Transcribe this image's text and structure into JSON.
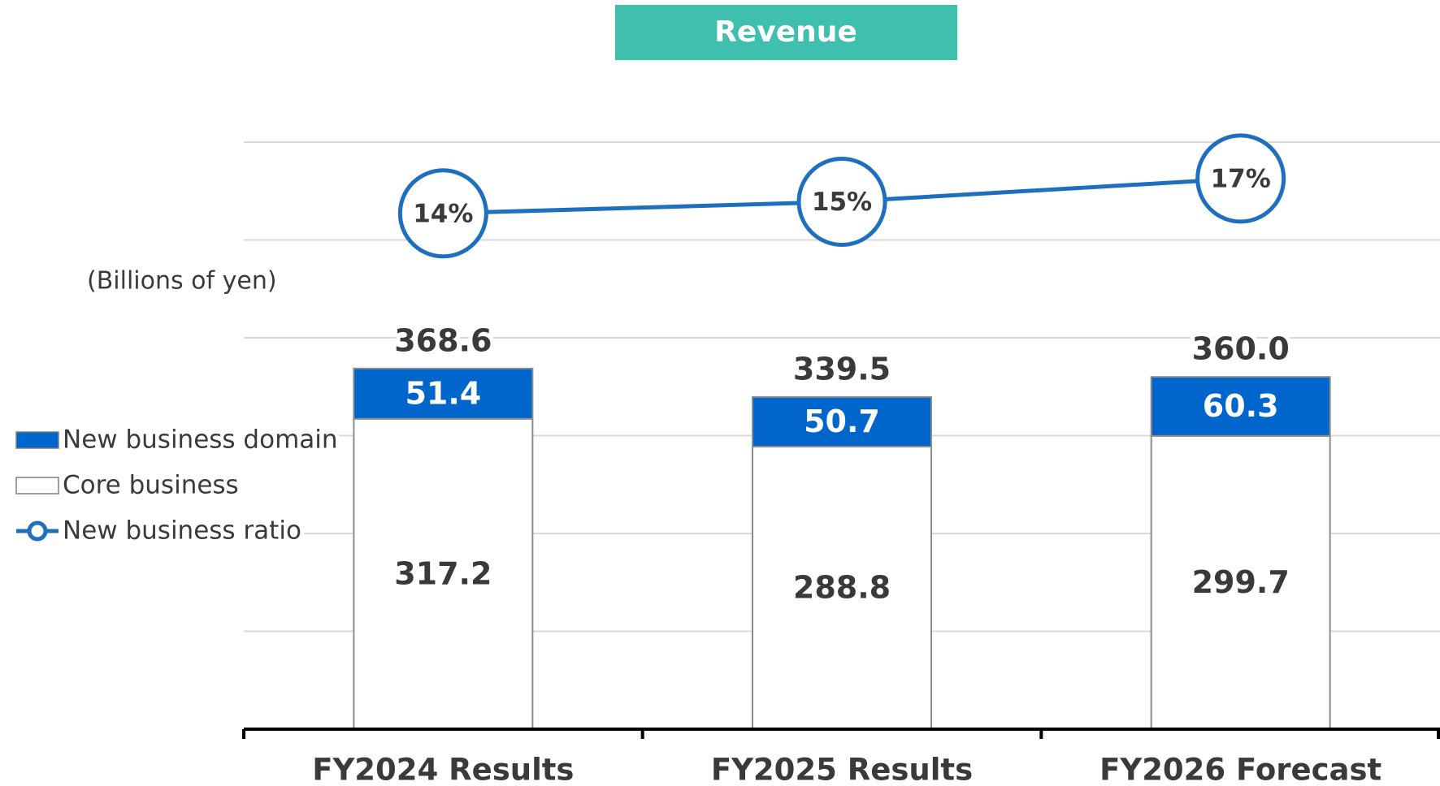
{
  "chart_data": {
    "type": "bar",
    "title": "Revenue",
    "y_label": "(Billions of yen)",
    "categories": [
      "FY2024 Results",
      "FY2025 Results",
      "FY2026 Forecast"
    ],
    "series": [
      {
        "name": "New business domain",
        "color": "#0066cc",
        "values": [
          51.4,
          50.7,
          60.3
        ]
      },
      {
        "name": "Core business",
        "color": "#ffffff",
        "values": [
          317.2,
          288.8,
          299.7
        ]
      },
      {
        "name": "New business ratio",
        "type": "line",
        "axis": "y2",
        "color": "#1f6fbf",
        "values": [
          14,
          15,
          17
        ],
        "value_labels": [
          "14%",
          "15%",
          "17%"
        ]
      }
    ],
    "totals": [
      368.6,
      339.5,
      360
    ],
    "total_labels": [
      "368.6",
      "339.5",
      "360.0"
    ],
    "ylim": [
      0,
      600
    ],
    "yticks": [
      0,
      100,
      200,
      300,
      400,
      500,
      600
    ],
    "y2lim": [
      0,
      30
    ],
    "grid": true,
    "legend": "left"
  }
}
